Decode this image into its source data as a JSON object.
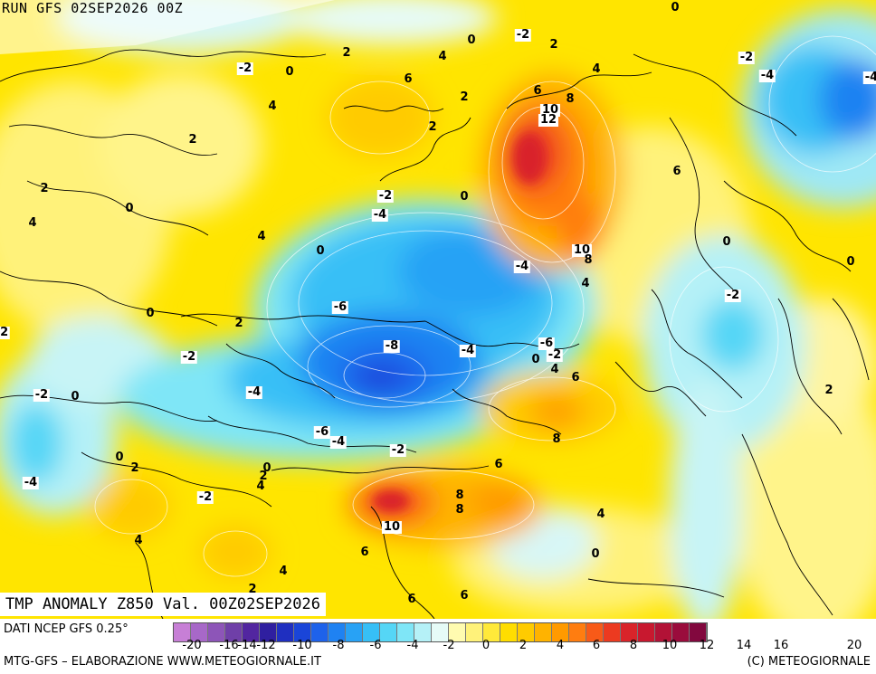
{
  "run_title": "RUN GFS 02SEP2026 00Z",
  "main_title": "TMP ANOMALY Z850 Val. 00Z02SEP2026",
  "source": "DATI NCEP GFS 0.25°",
  "credit_left": "MTG-GFS – ELABORAZIONE WWW.METEOGIORNALE.IT",
  "credit_right": "(C) METEOGIORNALE",
  "scale_colors": [
    "#c77fd6",
    "#a768c8",
    "#8d55b8",
    "#6f3fa8",
    "#5226a0",
    "#2f1fa0",
    "#1f2fc0",
    "#1a45d8",
    "#1e62ea",
    "#1f82f2",
    "#28a2f5",
    "#37bff6",
    "#55d6f6",
    "#7fe6f7",
    "#b5f1f7",
    "#e6fbf7",
    "#fffbb0",
    "#fff27a",
    "#ffe93a",
    "#ffdd00",
    "#ffcb00",
    "#ffb300",
    "#ff9a00",
    "#ff7d10",
    "#f85a18",
    "#ec3a20",
    "#d9242a",
    "#c8182f",
    "#b21236",
    "#9a0c3c",
    "#82083e"
  ],
  "scale_ticks": [
    "-20",
    "-16",
    "-14",
    "-12",
    "-10",
    "-8",
    "-6",
    "-4",
    "-2",
    "0",
    "2",
    "4",
    "6",
    "8",
    "10",
    "12",
    "14",
    "16",
    "20"
  ],
  "contour_labels": [
    {
      "t": "0",
      "bg": false
    },
    {
      "t": "-2",
      "bg": true
    },
    {
      "t": "2",
      "bg": false
    },
    {
      "t": "0",
      "bg": false
    },
    {
      "t": "4",
      "bg": false
    },
    {
      "t": "-2",
      "bg": true
    },
    {
      "t": "0",
      "bg": false
    },
    {
      "t": "2",
      "bg": false
    },
    {
      "t": "-2",
      "bg": true
    },
    {
      "t": "-4",
      "bg": true
    },
    {
      "t": "6",
      "bg": false
    },
    {
      "t": "4",
      "bg": false
    },
    {
      "t": "6",
      "bg": false
    },
    {
      "t": "8",
      "bg": false
    },
    {
      "t": "10",
      "bg": true
    },
    {
      "t": "12",
      "bg": true
    },
    {
      "t": "2",
      "bg": false
    },
    {
      "t": "4",
      "bg": false
    },
    {
      "t": "2",
      "bg": false
    },
    {
      "t": "2",
      "bg": false
    },
    {
      "t": "-2",
      "bg": true
    },
    {
      "t": "-4",
      "bg": true
    },
    {
      "t": "0",
      "bg": false
    },
    {
      "t": "6",
      "bg": false
    },
    {
      "t": "2",
      "bg": false
    },
    {
      "t": "0",
      "bg": false
    },
    {
      "t": "4",
      "bg": false
    },
    {
      "t": "4",
      "bg": false
    },
    {
      "t": "0",
      "bg": false
    },
    {
      "t": "10",
      "bg": true
    },
    {
      "t": "8",
      "bg": false
    },
    {
      "t": "0",
      "bg": false
    },
    {
      "t": "-4",
      "bg": true
    },
    {
      "t": "4",
      "bg": false
    },
    {
      "t": "-2",
      "bg": true
    },
    {
      "t": "0",
      "bg": false
    },
    {
      "t": "0",
      "bg": false
    },
    {
      "t": "-6",
      "bg": true
    },
    {
      "t": "2",
      "bg": false
    },
    {
      "t": "-8",
      "bg": true
    },
    {
      "t": "-4",
      "bg": true
    },
    {
      "t": "-6",
      "bg": true
    },
    {
      "t": "-2",
      "bg": true
    },
    {
      "t": "0",
      "bg": false
    },
    {
      "t": "4",
      "bg": false
    },
    {
      "t": "-2",
      "bg": true
    },
    {
      "t": "-4",
      "bg": true
    },
    {
      "t": "6",
      "bg": false
    },
    {
      "t": "-2",
      "bg": true
    },
    {
      "t": "0",
      "bg": false
    },
    {
      "t": "2",
      "bg": false
    },
    {
      "t": "-6",
      "bg": true
    },
    {
      "t": "-4",
      "bg": true
    },
    {
      "t": "8",
      "bg": false
    },
    {
      "t": "-2",
      "bg": true
    },
    {
      "t": "0",
      "bg": false
    },
    {
      "t": "2",
      "bg": false
    },
    {
      "t": "0",
      "bg": false
    },
    {
      "t": "2",
      "bg": false
    },
    {
      "t": "4",
      "bg": false
    },
    {
      "t": "6",
      "bg": false
    },
    {
      "t": "-4",
      "bg": true
    },
    {
      "t": "-2",
      "bg": true
    },
    {
      "t": "8",
      "bg": false
    },
    {
      "t": "8",
      "bg": false
    },
    {
      "t": "10",
      "bg": true
    },
    {
      "t": "4",
      "bg": false
    },
    {
      "t": "4",
      "bg": false
    },
    {
      "t": "6",
      "bg": false
    },
    {
      "t": "0",
      "bg": false
    },
    {
      "t": "4",
      "bg": false
    },
    {
      "t": "2",
      "bg": false
    },
    {
      "t": "6",
      "bg": false
    },
    {
      "t": "6",
      "bg": false
    },
    {
      "t": "-2",
      "bg": true
    },
    {
      "t": "-4",
      "bg": true
    }
  ]
}
